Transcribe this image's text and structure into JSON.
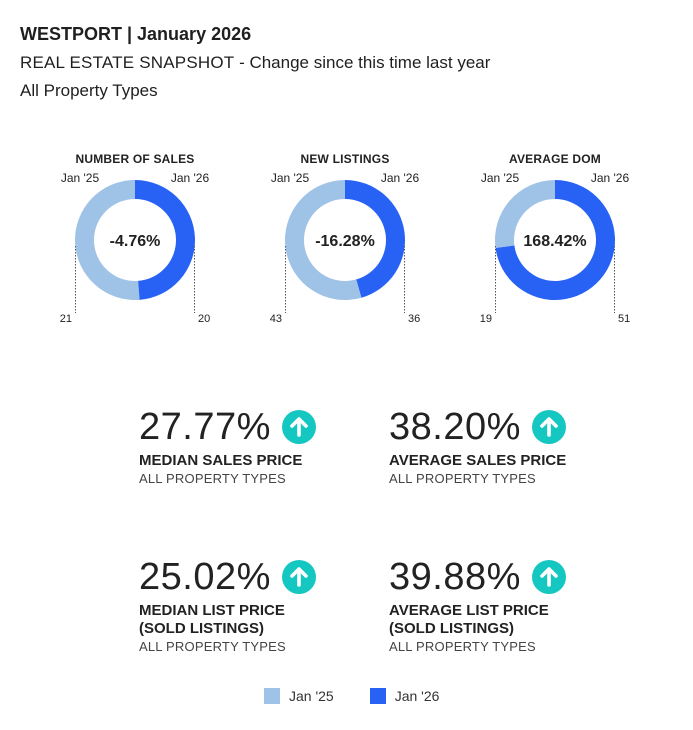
{
  "header": {
    "title": "WESTPORT | January 2026",
    "subtitle_main": "REAL ESTATE SNAPSHOT",
    "subtitle_rest": " - Change since this time last year",
    "subline": "All Property Types"
  },
  "colors": {
    "prior": "#9fc2e7",
    "current": "#2762f5",
    "arrow": "#14c7c0",
    "leader": "#555555"
  },
  "chart_data": [
    {
      "type": "pie",
      "title": "NUMBER OF SALES",
      "labels": [
        "Jan '25",
        "Jan '26"
      ],
      "values": [
        21,
        20
      ],
      "center_label": "-4.76%"
    },
    {
      "type": "pie",
      "title": "NEW LISTINGS",
      "labels": [
        "Jan '25",
        "Jan '26"
      ],
      "values": [
        43,
        36
      ],
      "center_label": "-16.28%"
    },
    {
      "type": "pie",
      "title": "AVERAGE DOM",
      "labels": [
        "Jan '25",
        "Jan '26"
      ],
      "values": [
        19,
        51
      ],
      "center_label": "168.42%"
    }
  ],
  "kpis": [
    {
      "value": "27.77%",
      "label_line1": "MEDIAN SALES PRICE",
      "label_line2": "",
      "sub": "ALL PROPERTY TYPES",
      "arrow_icon": "arrow-up-icon"
    },
    {
      "value": "38.20%",
      "label_line1": "AVERAGE SALES PRICE",
      "label_line2": "",
      "sub": "ALL PROPERTY TYPES",
      "arrow_icon": "arrow-up-icon"
    },
    {
      "value": "25.02%",
      "label_line1": "MEDIAN LIST PRICE",
      "label_line2": "(SOLD LISTINGS)",
      "sub": "ALL PROPERTY TYPES",
      "arrow_icon": "arrow-up-icon"
    },
    {
      "value": "39.88%",
      "label_line1": "AVERAGE LIST PRICE",
      "label_line2": "(SOLD LISTINGS)",
      "sub": "ALL PROPERTY TYPES",
      "arrow_icon": "arrow-up-icon"
    }
  ],
  "legend": [
    {
      "label": "Jan '25",
      "series": "prior"
    },
    {
      "label": "Jan '26",
      "series": "current"
    }
  ]
}
